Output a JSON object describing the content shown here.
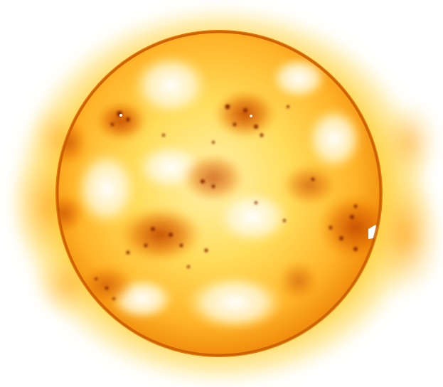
{
  "image": {
    "subject": "sun",
    "colors": {
      "background": "#ffffff",
      "corona_outer": "#ffd84d",
      "corona_mid": "#ffb400",
      "disk_bright": "#fff7d6",
      "disk_yellow": "#ffd23f",
      "disk_orange": "#ff9a1a",
      "active_region": "#d85a00",
      "dark_spot": "#8a2a00",
      "limb": "#e07000"
    }
  }
}
